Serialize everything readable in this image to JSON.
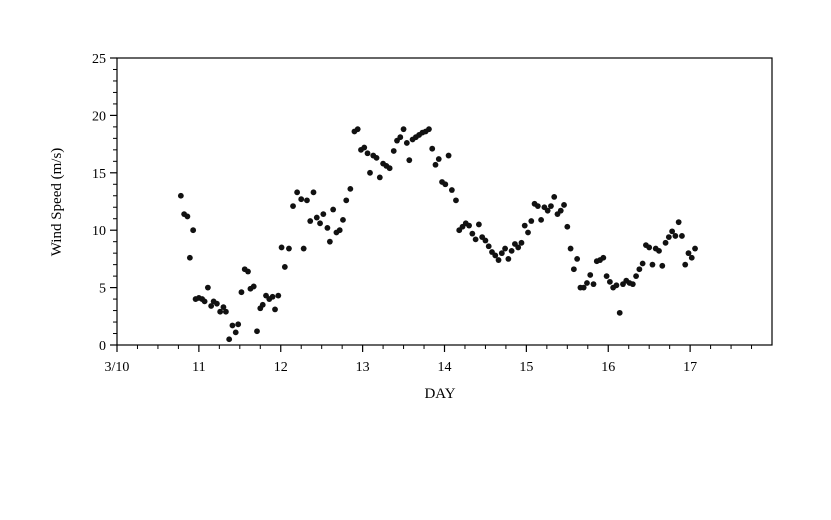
{
  "chart_data": {
    "type": "scatter",
    "xlabel": "DAY",
    "ylabel": "Wind Speed (m/s)",
    "xlim": [
      10,
      18
    ],
    "ylim": [
      0,
      25
    ],
    "x_ticks": [
      10,
      11,
      12,
      13,
      14,
      15,
      16,
      17
    ],
    "x_tick_labels": [
      "3/10",
      "11",
      "12",
      "13",
      "14",
      "15",
      "16",
      "17"
    ],
    "y_ticks": [
      0,
      5,
      10,
      15,
      20,
      25
    ],
    "y_tick_labels": [
      "0",
      "5",
      "10",
      "15",
      "20",
      "25"
    ],
    "grid": false,
    "legend": "none",
    "marker_color": "#111111",
    "series": [
      {
        "points": [
          [
            10.78,
            13.0
          ],
          [
            10.82,
            11.4
          ],
          [
            10.86,
            11.2
          ],
          [
            10.89,
            7.6
          ],
          [
            10.93,
            10.0
          ],
          [
            10.96,
            4.0
          ],
          [
            11.0,
            4.1
          ],
          [
            11.04,
            4.0
          ],
          [
            11.07,
            3.8
          ],
          [
            11.11,
            5.0
          ],
          [
            11.15,
            3.4
          ],
          [
            11.18,
            3.8
          ],
          [
            11.22,
            3.6
          ],
          [
            11.26,
            2.9
          ],
          [
            11.3,
            3.3
          ],
          [
            11.33,
            2.9
          ],
          [
            11.37,
            0.5
          ],
          [
            11.41,
            1.7
          ],
          [
            11.45,
            1.1
          ],
          [
            11.48,
            1.8
          ],
          [
            11.52,
            4.6
          ],
          [
            11.56,
            6.6
          ],
          [
            11.6,
            6.4
          ],
          [
            11.63,
            4.9
          ],
          [
            11.67,
            5.1
          ],
          [
            11.71,
            1.2
          ],
          [
            11.75,
            3.2
          ],
          [
            11.78,
            3.5
          ],
          [
            11.82,
            4.3
          ],
          [
            11.86,
            4.0
          ],
          [
            11.9,
            4.2
          ],
          [
            11.93,
            3.1
          ],
          [
            11.97,
            4.3
          ],
          [
            12.01,
            8.5
          ],
          [
            12.05,
            6.8
          ],
          [
            12.1,
            8.4
          ],
          [
            12.15,
            12.1
          ],
          [
            12.2,
            13.3
          ],
          [
            12.25,
            12.7
          ],
          [
            12.28,
            8.4
          ],
          [
            12.32,
            12.6
          ],
          [
            12.36,
            10.8
          ],
          [
            12.4,
            13.3
          ],
          [
            12.44,
            11.1
          ],
          [
            12.48,
            10.6
          ],
          [
            12.52,
            11.4
          ],
          [
            12.57,
            10.2
          ],
          [
            12.6,
            9.0
          ],
          [
            12.64,
            11.8
          ],
          [
            12.68,
            9.8
          ],
          [
            12.72,
            10.0
          ],
          [
            12.76,
            10.9
          ],
          [
            12.8,
            12.6
          ],
          [
            12.85,
            13.6
          ],
          [
            12.9,
            18.6
          ],
          [
            12.94,
            18.8
          ],
          [
            12.98,
            17.0
          ],
          [
            13.02,
            17.2
          ],
          [
            13.06,
            16.7
          ],
          [
            13.09,
            15.0
          ],
          [
            13.13,
            16.5
          ],
          [
            13.17,
            16.3
          ],
          [
            13.21,
            14.6
          ],
          [
            13.25,
            15.8
          ],
          [
            13.29,
            15.6
          ],
          [
            13.33,
            15.4
          ],
          [
            13.38,
            16.9
          ],
          [
            13.42,
            17.8
          ],
          [
            13.46,
            18.1
          ],
          [
            13.5,
            18.8
          ],
          [
            13.54,
            17.6
          ],
          [
            13.57,
            16.1
          ],
          [
            13.61,
            17.9
          ],
          [
            13.65,
            18.1
          ],
          [
            13.69,
            18.3
          ],
          [
            13.73,
            18.5
          ],
          [
            13.77,
            18.6
          ],
          [
            13.81,
            18.8
          ],
          [
            13.85,
            17.1
          ],
          [
            13.89,
            15.7
          ],
          [
            13.93,
            16.2
          ],
          [
            13.97,
            14.2
          ],
          [
            14.01,
            14.0
          ],
          [
            14.05,
            16.5
          ],
          [
            14.09,
            13.5
          ],
          [
            14.14,
            12.6
          ],
          [
            14.18,
            10.0
          ],
          [
            14.22,
            10.3
          ],
          [
            14.26,
            10.6
          ],
          [
            14.3,
            10.4
          ],
          [
            14.34,
            9.7
          ],
          [
            14.38,
            9.2
          ],
          [
            14.42,
            10.5
          ],
          [
            14.46,
            9.4
          ],
          [
            14.5,
            9.1
          ],
          [
            14.54,
            8.6
          ],
          [
            14.58,
            8.1
          ],
          [
            14.62,
            7.8
          ],
          [
            14.66,
            7.4
          ],
          [
            14.7,
            8.0
          ],
          [
            14.74,
            8.4
          ],
          [
            14.78,
            7.5
          ],
          [
            14.82,
            8.2
          ],
          [
            14.86,
            8.8
          ],
          [
            14.9,
            8.5
          ],
          [
            14.94,
            8.9
          ],
          [
            14.98,
            10.4
          ],
          [
            15.02,
            9.8
          ],
          [
            15.06,
            10.8
          ],
          [
            15.1,
            12.3
          ],
          [
            15.14,
            12.1
          ],
          [
            15.18,
            10.9
          ],
          [
            15.22,
            12.0
          ],
          [
            15.26,
            11.7
          ],
          [
            15.3,
            12.1
          ],
          [
            15.34,
            12.9
          ],
          [
            15.38,
            11.4
          ],
          [
            15.42,
            11.7
          ],
          [
            15.46,
            12.2
          ],
          [
            15.5,
            10.3
          ],
          [
            15.54,
            8.4
          ],
          [
            15.58,
            6.6
          ],
          [
            15.62,
            7.5
          ],
          [
            15.66,
            5.0
          ],
          [
            15.7,
            5.0
          ],
          [
            15.74,
            5.4
          ],
          [
            15.78,
            6.1
          ],
          [
            15.82,
            5.3
          ],
          [
            15.86,
            7.3
          ],
          [
            15.9,
            7.4
          ],
          [
            15.94,
            7.6
          ],
          [
            15.98,
            6.0
          ],
          [
            16.02,
            5.5
          ],
          [
            16.06,
            5.0
          ],
          [
            16.1,
            5.2
          ],
          [
            16.14,
            2.8
          ],
          [
            16.18,
            5.3
          ],
          [
            16.22,
            5.6
          ],
          [
            16.26,
            5.4
          ],
          [
            16.3,
            5.3
          ],
          [
            16.34,
            6.0
          ],
          [
            16.38,
            6.6
          ],
          [
            16.42,
            7.1
          ],
          [
            16.46,
            8.7
          ],
          [
            16.5,
            8.5
          ],
          [
            16.54,
            7.0
          ],
          [
            16.58,
            8.4
          ],
          [
            16.62,
            8.2
          ],
          [
            16.66,
            6.9
          ],
          [
            16.7,
            8.9
          ],
          [
            16.74,
            9.4
          ],
          [
            16.78,
            9.9
          ],
          [
            16.82,
            9.5
          ],
          [
            16.86,
            10.7
          ],
          [
            16.9,
            9.5
          ],
          [
            16.94,
            7.0
          ],
          [
            16.98,
            8.0
          ],
          [
            17.02,
            7.6
          ],
          [
            17.06,
            8.4
          ]
        ]
      }
    ]
  }
}
